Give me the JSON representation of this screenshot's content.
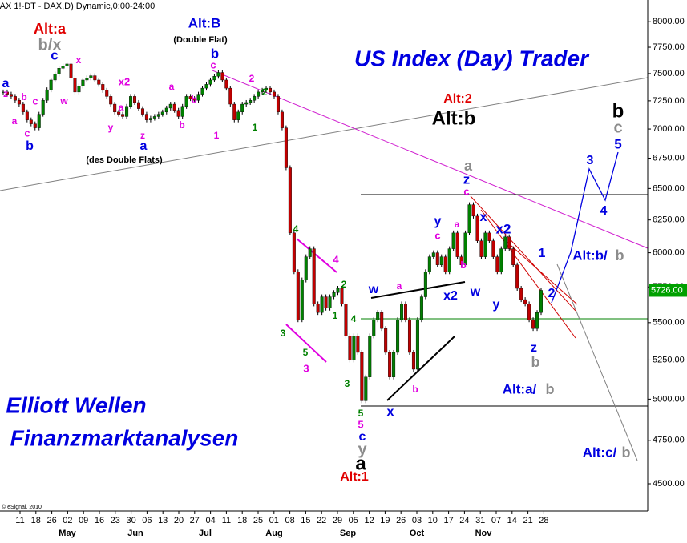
{
  "chart_data": {
    "type": "candlestick",
    "header": "(AX 1!-DT - DAX,D) Dynamic,0:00-24:00",
    "title": "US Index (Day) Trader",
    "log_scale": true,
    "ylim": [
      4350,
      8220
    ],
    "yticks": [
      {
        "value": 8000,
        "label": "8000.00"
      },
      {
        "value": 7750,
        "label": "7750.00"
      },
      {
        "value": 7500,
        "label": "7500.00"
      },
      {
        "value": 7250,
        "label": "7250.00"
      },
      {
        "value": 7000,
        "label": "7000.00"
      },
      {
        "value": 6750,
        "label": "6750.00"
      },
      {
        "value": 6500,
        "label": "6500.00"
      },
      {
        "value": 6250,
        "label": "6250.00"
      },
      {
        "value": 6000,
        "label": "6000.00"
      },
      {
        "value": 5750,
        "label": "5750.00"
      },
      {
        "value": 5500,
        "label": "5500.00"
      },
      {
        "value": 5250,
        "label": "5250.00"
      },
      {
        "value": 5000,
        "label": "5000.00"
      },
      {
        "value": 4750,
        "label": "4750.00"
      },
      {
        "value": 4500,
        "label": "4500.00"
      }
    ],
    "categories": [
      "11",
      "18",
      "26",
      "02",
      "09",
      "16",
      "23",
      "30",
      "06",
      "13",
      "20",
      "27",
      "04",
      "11",
      "18",
      "25",
      "01",
      "08",
      "15",
      "22",
      "29",
      "05",
      "12",
      "19",
      "26",
      "03",
      "10",
      "17",
      "24",
      "31",
      "07",
      "14",
      "21",
      "28"
    ],
    "months": [
      "May",
      "Jun",
      "Jul",
      "Aug",
      "Sep",
      "Oct",
      "Nov"
    ],
    "up_color": "#008000",
    "down_color": "#c00000",
    "close": [
      7330,
      7310,
      7290,
      7255,
      7220,
      7150,
      7080,
      7045,
      7010,
      7130,
      7255,
      7350,
      7440,
      7495,
      7550,
      7570,
      7590,
      7460,
      7330,
      7385,
      7440,
      7460,
      7480,
      7440,
      7400,
      7345,
      7290,
      7220,
      7150,
      7130,
      7110,
      7200,
      7290,
      7235,
      7180,
      7130,
      7080,
      7095,
      7110,
      7130,
      7150,
      7185,
      7220,
      7165,
      7110,
      7200,
      7290,
      7270,
      7255,
      7310,
      7365,
      7400,
      7440,
      7475,
      7510,
      7440,
      7365,
      7220,
      7080,
      7150,
      7220,
      7235,
      7255,
      7290,
      7330,
      7345,
      7365,
      7330,
      7290,
      7150,
      7010,
      6670,
      6150,
      5860,
      5520,
      5800,
      5970,
      6030,
      5630,
      5570,
      5680,
      5600,
      5680,
      5710,
      5740,
      5630,
      5410,
      5250,
      5410,
      5300,
      4990,
      5140,
      5410,
      5520,
      5570,
      5460,
      5300,
      5140,
      5300,
      5520,
      5630,
      5520,
      5300,
      5190,
      5520,
      5680,
      5860,
      5970,
      6000,
      5910,
      5970,
      5860,
      6030,
      6150,
      5970,
      5910,
      6150,
      6370,
      6280,
      6090,
      5970,
      6150,
      6090,
      5970,
      5860,
      6030,
      6120,
      6030,
      5910,
      5740,
      5660,
      5630,
      5520,
      5460,
      5570,
      5726
    ],
    "last_price_label": "5726.00",
    "copyright": "© eSignal, 2010",
    "annotations": [
      {
        "text": "Alt:a",
        "color": "#e00000"
      },
      {
        "text": "b/x",
        "color": "#8c8c8c"
      },
      {
        "text": "c",
        "color": "#0000e0"
      },
      {
        "text": "Alt:B",
        "color": "#0000e0"
      },
      {
        "text": "(Double Flat)",
        "color": "#000000"
      },
      {
        "text": "b",
        "color": "#0000e0"
      },
      {
        "text": "c",
        "color": "#e000e0"
      },
      {
        "text": "a",
        "color": "#0000e0"
      },
      {
        "text": "z",
        "color": "#e000e0"
      },
      {
        "text": "a",
        "color": "#e000e0"
      },
      {
        "text": "b",
        "color": "#e000e0"
      },
      {
        "text": "c",
        "color": "#e000e0"
      },
      {
        "text": "b",
        "color": "#0000e0"
      },
      {
        "text": "c",
        "color": "#e000e0"
      },
      {
        "text": "w",
        "color": "#e000e0"
      },
      {
        "text": "x",
        "color": "#e000e0"
      },
      {
        "text": "x2",
        "color": "#e000e0"
      },
      {
        "text": "a",
        "color": "#e000e0"
      },
      {
        "text": "y",
        "color": "#e000e0"
      },
      {
        "text": "z",
        "color": "#e000e0"
      },
      {
        "text": "a",
        "color": "#0000e0"
      },
      {
        "text": "b",
        "color": "#e000e0"
      },
      {
        "text": "a",
        "color": "#e000e0"
      },
      {
        "text": "b",
        "color": "#e000e0"
      },
      {
        "text": "1",
        "color": "#e000e0"
      },
      {
        "text": "2",
        "color": "#e000e0"
      },
      {
        "text": "2",
        "color": "#008000"
      },
      {
        "text": "1",
        "color": "#008000"
      },
      {
        "text": "(des Double Flats)",
        "color": "#000000"
      },
      {
        "text": "Alt:2",
        "color": "#e00000"
      },
      {
        "text": "Alt:b",
        "color": "#000000"
      },
      {
        "text": "a",
        "color": "#8c8c8c"
      },
      {
        "text": "z",
        "color": "#0000e0"
      },
      {
        "text": "c",
        "color": "#e000e0"
      },
      {
        "text": "a",
        "color": "#e000e0"
      },
      {
        "text": "y",
        "color": "#0000e0"
      },
      {
        "text": "c",
        "color": "#e000e0"
      },
      {
        "text": "b",
        "color": "#e000e0"
      },
      {
        "text": "w",
        "color": "#0000e0"
      },
      {
        "text": "x",
        "color": "#0000e0"
      },
      {
        "text": "x2",
        "color": "#0000e0"
      },
      {
        "text": "y",
        "color": "#0000e0"
      },
      {
        "text": "b",
        "color": "#000000"
      },
      {
        "text": "c",
        "color": "#8c8c8c"
      },
      {
        "text": "5",
        "color": "#0000e0"
      },
      {
        "text": "3",
        "color": "#0000e0"
      },
      {
        "text": "4",
        "color": "#0000e0"
      },
      {
        "text": "1",
        "color": "#0000e0"
      },
      {
        "text": "2",
        "color": "#0000e0"
      },
      {
        "text": "Alt:b/",
        "color": "#0000e0"
      },
      {
        "text": "b",
        "color": "#8c8c8c"
      },
      {
        "text": "z",
        "color": "#0000e0"
      },
      {
        "text": "b",
        "color": "#8c8c8c"
      },
      {
        "text": "Alt:a/",
        "color": "#0000e0"
      },
      {
        "text": "b",
        "color": "#8c8c8c"
      },
      {
        "text": "Alt:c/",
        "color": "#0000e0"
      },
      {
        "text": "b",
        "color": "#8c8c8c"
      },
      {
        "text": "x2",
        "color": "#0000e0"
      },
      {
        "text": "w",
        "color": "#0000e0"
      },
      {
        "text": "a",
        "color": "#e000e0"
      },
      {
        "text": "b",
        "color": "#e000e0"
      },
      {
        "text": "x",
        "color": "#0000e0"
      },
      {
        "text": "4",
        "color": "#008000"
      },
      {
        "text": "3",
        "color": "#008000"
      },
      {
        "text": "5",
        "color": "#008000"
      },
      {
        "text": "3",
        "color": "#e000e0"
      },
      {
        "text": "4",
        "color": "#e000e0"
      },
      {
        "text": "2",
        "color": "#008000"
      },
      {
        "text": "1",
        "color": "#008000"
      },
      {
        "text": "4",
        "color": "#008000"
      },
      {
        "text": "3",
        "color": "#008000"
      },
      {
        "text": "5",
        "color": "#008000"
      },
      {
        "text": "5",
        "color": "#e000e0"
      },
      {
        "text": "c",
        "color": "#0000e0"
      },
      {
        "text": "y",
        "color": "#8c8c8c"
      },
      {
        "text": "a",
        "color": "#000000"
      },
      {
        "text": "Alt:1",
        "color": "#e00000"
      },
      {
        "text": "Elliott Wellen",
        "color": "#0000e0"
      },
      {
        "text": "Finanzmarktanalysen",
        "color": "#0000e0"
      }
    ]
  }
}
